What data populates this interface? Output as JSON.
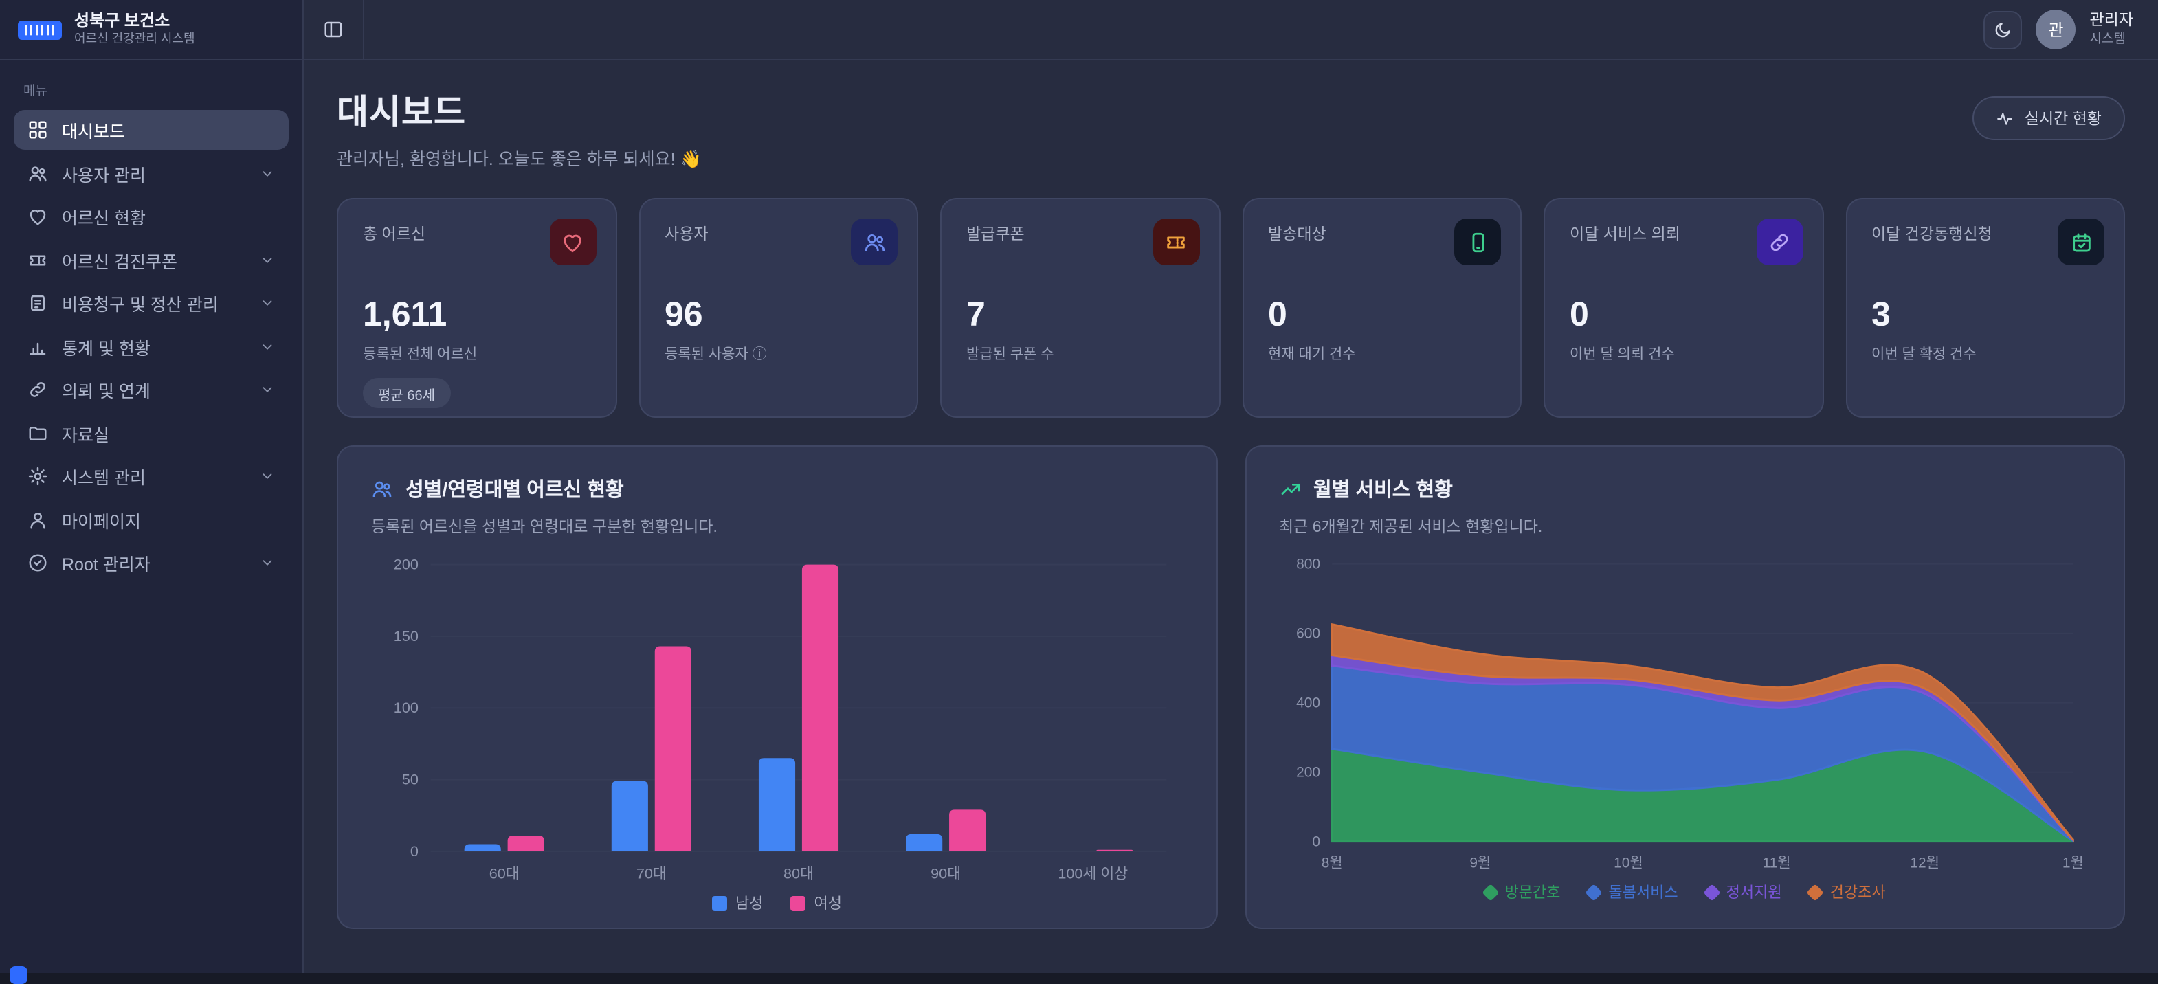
{
  "theme": {
    "bg": "#272c40",
    "sidebar": "#20243a",
    "card": "#313752",
    "card_border": "#3f4663"
  },
  "app": {
    "org": "성북구 보건소",
    "system": "어르신 건강관리 시스템"
  },
  "sidebar": {
    "section_label": "메뉴",
    "items": [
      {
        "label": "대시보드",
        "icon": "dashboard-grid",
        "active": true,
        "chevron": false
      },
      {
        "label": "사용자 관리",
        "icon": "users",
        "active": false,
        "chevron": true
      },
      {
        "label": "어르신 현황",
        "icon": "heart",
        "active": false,
        "chevron": false
      },
      {
        "label": "어르신 검진쿠폰",
        "icon": "ticket",
        "active": false,
        "chevron": true
      },
      {
        "label": "비용청구 및 정산 관리",
        "icon": "receipt",
        "active": false,
        "chevron": true
      },
      {
        "label": "통계 및 현황",
        "icon": "bar-chart",
        "active": false,
        "chevron": true
      },
      {
        "label": "의뢰 및 연계",
        "icon": "link",
        "active": false,
        "chevron": true
      },
      {
        "label": "자료실",
        "icon": "folder",
        "active": false,
        "chevron": false
      },
      {
        "label": "시스템 관리",
        "icon": "gear",
        "active": false,
        "chevron": true
      },
      {
        "label": "마이페이지",
        "icon": "person",
        "active": false,
        "chevron": false
      },
      {
        "label": "Root 관리자",
        "icon": "shield-check",
        "active": false,
        "chevron": true
      }
    ]
  },
  "topbar": {
    "user_name": "관리자",
    "user_role": "시스템",
    "avatar_initial": "관"
  },
  "header": {
    "title": "대시보드",
    "subtitle": "관리자님, 환영합니다. 오늘도 좋은 하루 되세요! 👋",
    "live_button": "실시간 현황"
  },
  "stat_cards": [
    {
      "title": "총 어르신",
      "value": "1,611",
      "caption": "등록된 전체 어르신",
      "badge": "평균 66세",
      "icon": "heart",
      "icon_color": "#e86a7a",
      "icon_bg": "#4a141f"
    },
    {
      "title": "사용자",
      "value": "96",
      "caption": "등록된 사용자 ⓘ",
      "icon": "users",
      "icon_color": "#6d8cf0",
      "icon_bg": "#20265f"
    },
    {
      "title": "발급쿠폰",
      "value": "7",
      "caption": "발급된 쿠폰 수",
      "icon": "ticket",
      "icon_color": "#f0a23c",
      "icon_bg": "#461313"
    },
    {
      "title": "발송대상",
      "value": "0",
      "caption": "현재 대기 건수",
      "icon": "smartphone",
      "icon_color": "#3ecf8e",
      "icon_bg": "#101726"
    },
    {
      "title": "이달 서비스 의뢰",
      "value": "0",
      "caption": "이번 달 의뢰 건수",
      "icon": "link",
      "icon_color": "#b9a6f7",
      "icon_bg": "#3b22a0"
    },
    {
      "title": "이달 건강동행신청",
      "value": "3",
      "caption": "이번 달 확정 건수",
      "icon": "calendar-check",
      "icon_color": "#3ecf8e",
      "icon_bg": "#121a2b"
    }
  ],
  "chart_data": [
    {
      "type": "bar",
      "title": "성별/연령대별 어르신 현황",
      "subtitle": "등록된 어르신을 성별과 연령대로 구분한 현황입니다.",
      "categories": [
        "60대",
        "70대",
        "80대",
        "90대",
        "100세 이상"
      ],
      "series": [
        {
          "name": "남성",
          "color": "#4285f4",
          "values": [
            5,
            49,
            65,
            12,
            0
          ]
        },
        {
          "name": "여성",
          "color": "#ec4899",
          "values": [
            11,
            143,
            200,
            29,
            1
          ]
        }
      ],
      "ylim": [
        0,
        200
      ],
      "yticks": [
        0,
        50,
        100,
        150,
        200
      ],
      "grid": true,
      "legend_position": "bottom"
    },
    {
      "type": "area",
      "stacked": true,
      "title": "월별 서비스 현황",
      "subtitle": "최근 6개월간 제공된 서비스 현황입니다.",
      "categories": [
        "8월",
        "9월",
        "10월",
        "11월",
        "12월",
        "1월"
      ],
      "series": [
        {
          "name": "방문간호",
          "color": "#2f9e60",
          "values": [
            267,
            200,
            148,
            178,
            259,
            2
          ]
        },
        {
          "name": "돌봄서비스",
          "color": "#4070d0",
          "values": [
            240,
            256,
            304,
            207,
            167,
            2
          ]
        },
        {
          "name": "정서지원",
          "color": "#7a55d8",
          "values": [
            30,
            22,
            15,
            22,
            15,
            1
          ]
        },
        {
          "name": "건강조사",
          "color": "#d0703c",
          "values": [
            89,
            63,
            40,
            37,
            44,
            1
          ]
        }
      ],
      "ylim": [
        0,
        800
      ],
      "yticks": [
        0,
        200,
        400,
        600,
        800
      ],
      "grid": true,
      "legend_position": "bottom"
    }
  ]
}
